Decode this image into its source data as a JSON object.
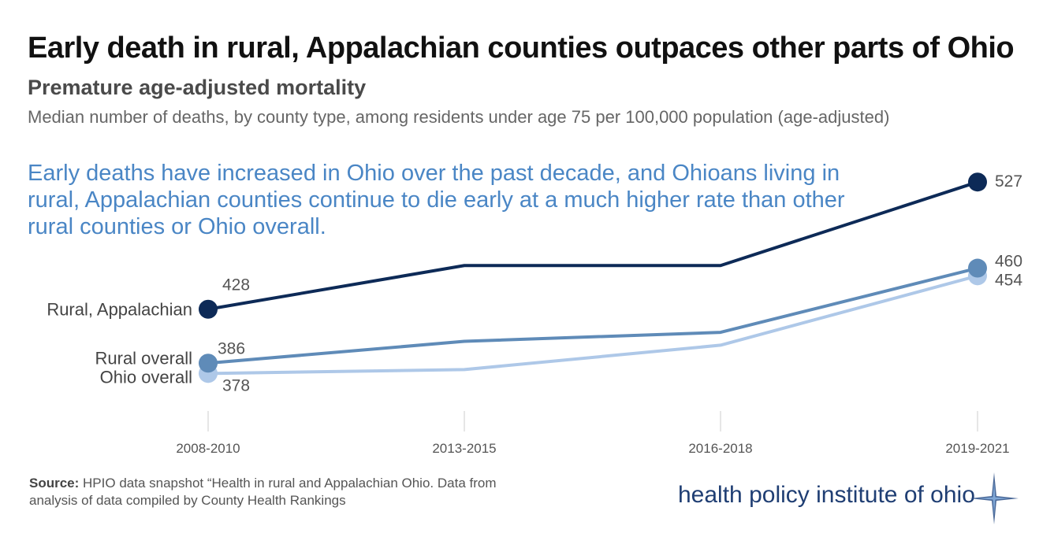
{
  "header": {
    "title": "Early death in rural, Appalachian counties outpaces other parts of Ohio",
    "subtitle": "Premature age-adjusted mortality",
    "description": "Median number of deaths, by county type, among residents under age 75 per 100,000 population (age-adjusted)"
  },
  "callout": "Early deaths have increased in Ohio over the past decade, and Ohioans living in rural, Appalachian counties continue to die early at a much higher rate than other rural counties or Ohio overall.",
  "footer": {
    "source_label": "Source:",
    "source_text": "HPIO data snapshot “Health in rural and Appalachian Ohio. Data from analysis of data compiled by County Health Rankings",
    "logo_text": "health policy institute of ohio"
  },
  "colors": {
    "rural_appalachian": "#0d2a57",
    "rural_overall": "#5f8bb8",
    "ohio_overall": "#aec8e8",
    "callout": "#4a86c5",
    "logo": "#1f3e73"
  },
  "chart_data": {
    "type": "line",
    "title": "Premature age-adjusted mortality",
    "xlabel": "",
    "ylabel": "",
    "categories": [
      "2008-2010",
      "2013-2015",
      "2016-2018",
      "2019-2021"
    ],
    "ylim": [
      350,
      540
    ],
    "grid": false,
    "series": [
      {
        "name": "Rural, Appalachian",
        "values": [
          428,
          462,
          462,
          527
        ],
        "start_label": "428",
        "end_label": "527"
      },
      {
        "name": "Rural overall",
        "values": [
          386,
          403,
          410,
          460
        ],
        "start_label": "386",
        "end_label": "460"
      },
      {
        "name": "Ohio overall",
        "values": [
          378,
          381,
          400,
          454
        ],
        "start_label": "378",
        "end_label": "454"
      }
    ]
  }
}
